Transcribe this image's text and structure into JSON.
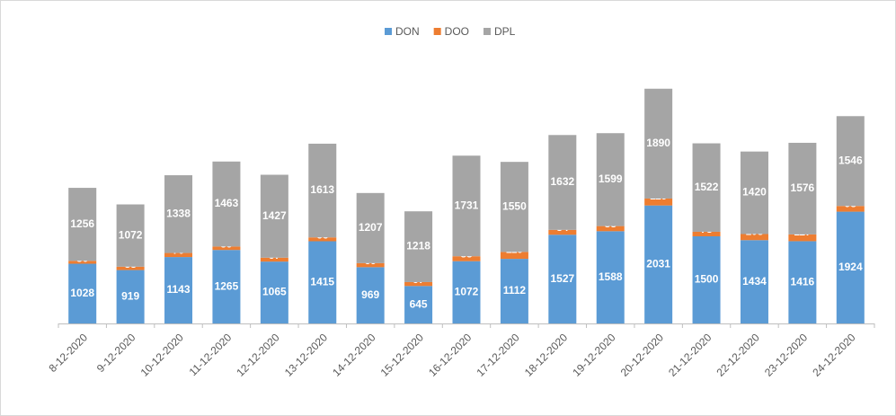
{
  "chart_data": {
    "type": "bar",
    "stacked": true,
    "categories": [
      "8-12-2020",
      "9-12-2020",
      "10-12-2020",
      "11-12-2020",
      "12-12-2020",
      "13-12-2020",
      "14-12-2020",
      "15-12-2020",
      "16-12-2020",
      "17-12-2020",
      "18-12-2020",
      "19-12-2020",
      "20-12-2020",
      "21-12-2020",
      "22-12-2020",
      "23-12-2020",
      "24-12-2020"
    ],
    "series": [
      {
        "name": "DON",
        "color": "#5b9bd5",
        "values": [
          1028,
          919,
          1143,
          1265,
          1065,
          1415,
          969,
          645,
          1072,
          1112,
          1527,
          1588,
          2031,
          1500,
          1434,
          1416,
          1924
        ]
      },
      {
        "name": "DOO",
        "color": "#ed7d31",
        "values": [
          50,
          58,
          70,
          59,
          67,
          66,
          69,
          67,
          85,
          119,
          84,
          88,
          119,
          78,
          105,
          117,
          98
        ]
      },
      {
        "name": "DPL",
        "color": "#a5a5a5",
        "values": [
          1256,
          1072,
          1338,
          1463,
          1427,
          1613,
          1207,
          1218,
          1731,
          1550,
          1632,
          1599,
          1890,
          1522,
          1420,
          1576,
          1546
        ]
      }
    ],
    "ylim": [
      0,
      4500
    ],
    "grid": false,
    "legend": "top"
  }
}
